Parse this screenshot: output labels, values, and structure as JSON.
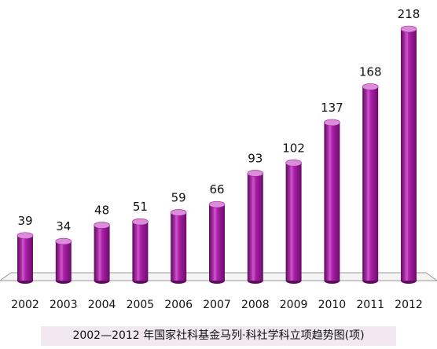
{
  "chart_data": {
    "type": "bar",
    "title": "2002—2012 年国家社科基金马列·科社学科立项趋势图(项)",
    "categories": [
      "2002",
      "2003",
      "2004",
      "2005",
      "2006",
      "2007",
      "2008",
      "2009",
      "2010",
      "2011",
      "2012"
    ],
    "values": [
      39,
      34,
      48,
      51,
      59,
      66,
      93,
      102,
      137,
      168,
      218
    ],
    "xlabel": "",
    "ylabel": "",
    "ylim": [
      0,
      218
    ],
    "grid": false,
    "legend": "none",
    "colors": {
      "bar_front": "#a21aa0",
      "bar_highlight": "#d25cd0",
      "bar_shadow": "#5e0c5c",
      "bar_top": "#d98ed7",
      "floor_line": "#9a9a9a"
    }
  }
}
